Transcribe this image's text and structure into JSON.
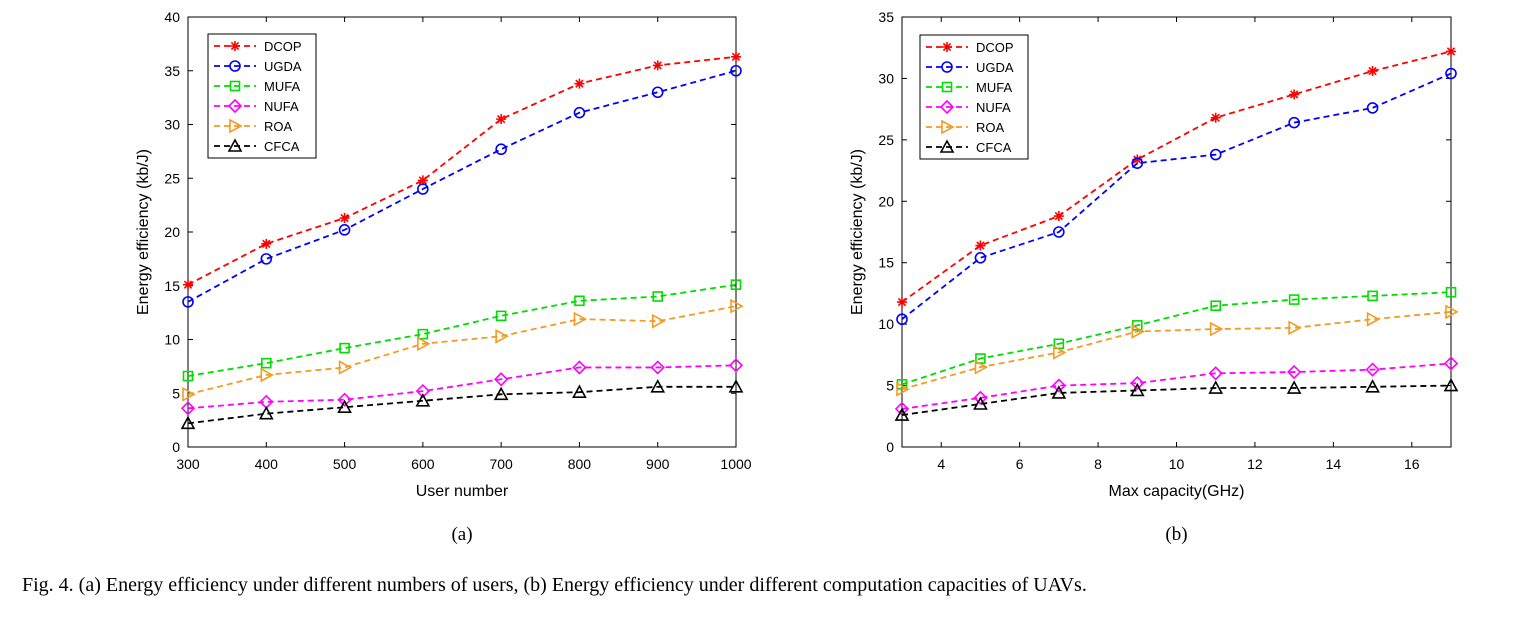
{
  "caption": "Fig. 4.  (a) Energy efficiency under different numbers of users, (b) Energy efficiency under different computation capacities of UAVs.",
  "chart_data": [
    {
      "type": "line",
      "subfigure_label": "(a)",
      "xlabel": "User number",
      "ylabel": "Energy efficiency (kb/J)",
      "xlim": [
        300,
        1000
      ],
      "ylim": [
        0,
        40
      ],
      "xticks": [
        300,
        400,
        500,
        600,
        700,
        800,
        900,
        1000
      ],
      "yticks": [
        0,
        5,
        10,
        15,
        20,
        25,
        30,
        35,
        40
      ],
      "grid": false,
      "legend_position": "top-left",
      "x": [
        300,
        400,
        500,
        600,
        700,
        800,
        900,
        1000
      ],
      "series": [
        {
          "name": "DCOP",
          "color": "#ff0000",
          "marker": "asterisk",
          "values": [
            15.1,
            18.9,
            21.3,
            24.8,
            30.5,
            33.8,
            35.5,
            36.3
          ]
        },
        {
          "name": "UGDA",
          "color": "#0000ff",
          "marker": "circle",
          "values": [
            13.5,
            17.5,
            20.2,
            24.0,
            27.7,
            31.1,
            33.0,
            35.0
          ]
        },
        {
          "name": "MUFA",
          "color": "#00dd00",
          "marker": "square",
          "values": [
            6.6,
            7.8,
            9.2,
            10.5,
            12.2,
            13.6,
            14.0,
            15.1
          ]
        },
        {
          "name": "NUFA",
          "color": "#ff00ff",
          "marker": "diamond",
          "values": [
            3.6,
            4.2,
            4.4,
            5.2,
            6.3,
            7.4,
            7.4,
            7.6
          ]
        },
        {
          "name": "ROA",
          "color": "#f59a23",
          "marker": "triangle-right",
          "values": [
            4.9,
            6.7,
            7.4,
            9.6,
            10.3,
            11.9,
            11.7,
            13.1
          ]
        },
        {
          "name": "CFCA",
          "color": "#000000",
          "marker": "triangle-up",
          "values": [
            2.2,
            3.1,
            3.7,
            4.3,
            4.9,
            5.1,
            5.6,
            5.6
          ]
        }
      ]
    },
    {
      "type": "line",
      "subfigure_label": "(b)",
      "xlabel": "Max capacity(GHz)",
      "ylabel": "Energy efficiency (kb/J)",
      "xlim": [
        3,
        17
      ],
      "ylim": [
        0,
        35
      ],
      "xticks": [
        4,
        6,
        8,
        10,
        12,
        14,
        16
      ],
      "yticks": [
        0,
        5,
        10,
        15,
        20,
        25,
        30,
        35
      ],
      "grid": false,
      "legend_position": "top-left",
      "x": [
        3,
        5,
        7,
        9,
        11,
        13,
        15,
        17
      ],
      "series": [
        {
          "name": "DCOP",
          "color": "#ff0000",
          "marker": "asterisk",
          "values": [
            11.8,
            16.4,
            18.8,
            23.4,
            26.8,
            28.7,
            30.6,
            32.2
          ]
        },
        {
          "name": "UGDA",
          "color": "#0000ff",
          "marker": "circle",
          "values": [
            10.4,
            15.4,
            17.5,
            23.1,
            23.8,
            26.4,
            27.6,
            30.4
          ]
        },
        {
          "name": "MUFA",
          "color": "#00dd00",
          "marker": "square",
          "values": [
            5.1,
            7.2,
            8.4,
            9.9,
            11.5,
            12.0,
            12.3,
            12.6
          ]
        },
        {
          "name": "NUFA",
          "color": "#ff00ff",
          "marker": "diamond",
          "values": [
            3.1,
            4.0,
            5.0,
            5.2,
            6.0,
            6.1,
            6.3,
            6.8
          ]
        },
        {
          "name": "ROA",
          "color": "#f59a23",
          "marker": "triangle-right",
          "values": [
            4.7,
            6.5,
            7.7,
            9.4,
            9.6,
            9.7,
            10.4,
            11.0
          ]
        },
        {
          "name": "CFCA",
          "color": "#000000",
          "marker": "triangle-up",
          "values": [
            2.6,
            3.5,
            4.4,
            4.6,
            4.8,
            4.8,
            4.9,
            5.0
          ]
        }
      ]
    }
  ]
}
